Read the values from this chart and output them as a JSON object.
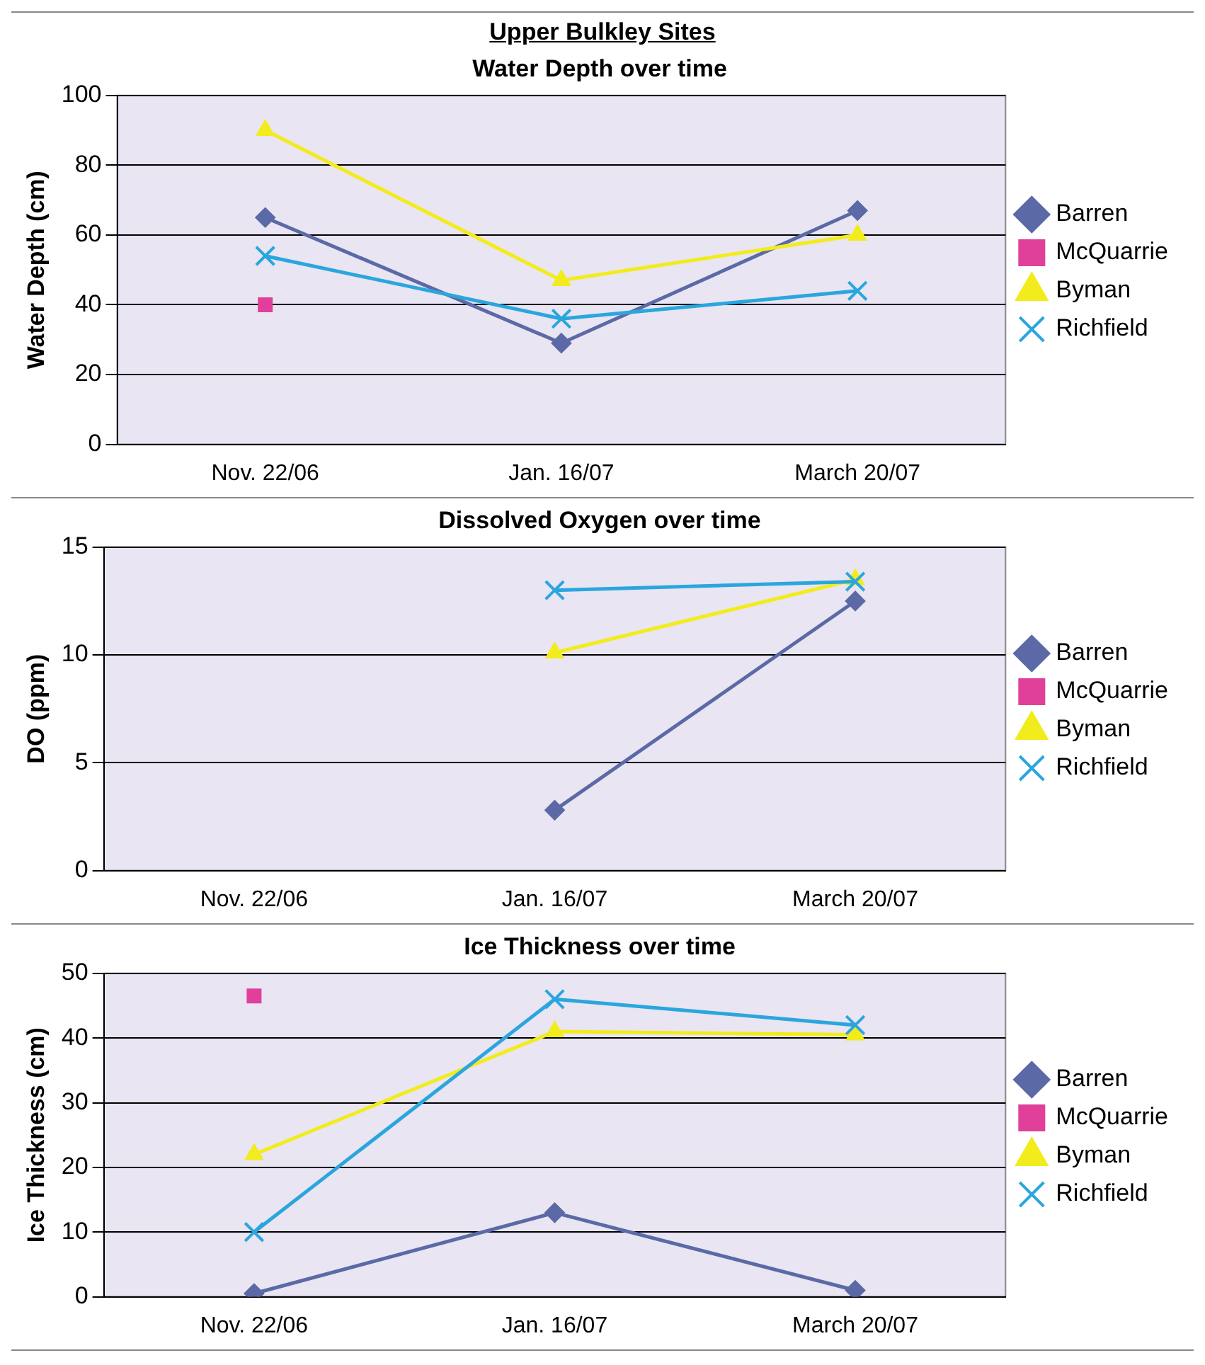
{
  "chart_data": [
    {
      "type": "line",
      "title": "Upper Bulkley Sites",
      "subtitle": "Water Depth over time",
      "ylabel": "Water Depth (cm)",
      "categories": [
        "Nov. 22/06",
        "Jan. 16/07",
        "March 20/07"
      ],
      "ylim": [
        0,
        100
      ],
      "yticks": [
        0,
        20,
        40,
        60,
        80,
        100
      ],
      "grid": "y",
      "legend": "right",
      "series": [
        {
          "name": "Barren",
          "color": "#5b6aa6",
          "marker": "diamond",
          "values": [
            65,
            29,
            67
          ]
        },
        {
          "name": "McQuarrie",
          "color": "#e0409a",
          "marker": "square",
          "values": [
            40,
            null,
            null
          ]
        },
        {
          "name": "Byman",
          "color": "#f2ec1c",
          "marker": "triangle",
          "values": [
            90,
            47,
            60
          ]
        },
        {
          "name": "Richfield",
          "color": "#2aa6de",
          "marker": "cross",
          "values": [
            54,
            36,
            44
          ]
        }
      ]
    },
    {
      "type": "line",
      "title": "Dissolved Oxygen over time",
      "ylabel": "DO (ppm)",
      "categories": [
        "Nov. 22/06",
        "Jan. 16/07",
        "March 20/07"
      ],
      "ylim": [
        0,
        15
      ],
      "yticks": [
        0,
        5,
        10,
        15
      ],
      "grid": "y",
      "legend": "right",
      "series": [
        {
          "name": "Barren",
          "color": "#5b6aa6",
          "marker": "diamond",
          "values": [
            null,
            2.8,
            12.5
          ]
        },
        {
          "name": "McQuarrie",
          "color": "#e0409a",
          "marker": "square",
          "values": [
            null,
            null,
            null
          ]
        },
        {
          "name": "Byman",
          "color": "#f2ec1c",
          "marker": "triangle",
          "values": [
            null,
            10.1,
            13.5
          ]
        },
        {
          "name": "Richfield",
          "color": "#2aa6de",
          "marker": "cross",
          "values": [
            null,
            13,
            13.4
          ]
        }
      ]
    },
    {
      "type": "line",
      "title": "Ice Thickness over time",
      "ylabel": "Ice Thickness (cm)",
      "categories": [
        "Nov. 22/06",
        "Jan. 16/07",
        "March 20/07"
      ],
      "ylim": [
        0,
        50
      ],
      "yticks": [
        0,
        10,
        20,
        30,
        40,
        50
      ],
      "grid": "y",
      "legend": "right",
      "series": [
        {
          "name": "Barren",
          "color": "#5b6aa6",
          "marker": "diamond",
          "values": [
            0.5,
            13,
            1
          ]
        },
        {
          "name": "McQuarrie",
          "color": "#e0409a",
          "marker": "square",
          "values": [
            46.5,
            null,
            null
          ]
        },
        {
          "name": "Byman",
          "color": "#f2ec1c",
          "marker": "triangle",
          "values": [
            22,
            41,
            40.5
          ]
        },
        {
          "name": "Richfield",
          "color": "#2aa6de",
          "marker": "cross",
          "values": [
            10,
            46,
            42
          ]
        }
      ]
    }
  ]
}
